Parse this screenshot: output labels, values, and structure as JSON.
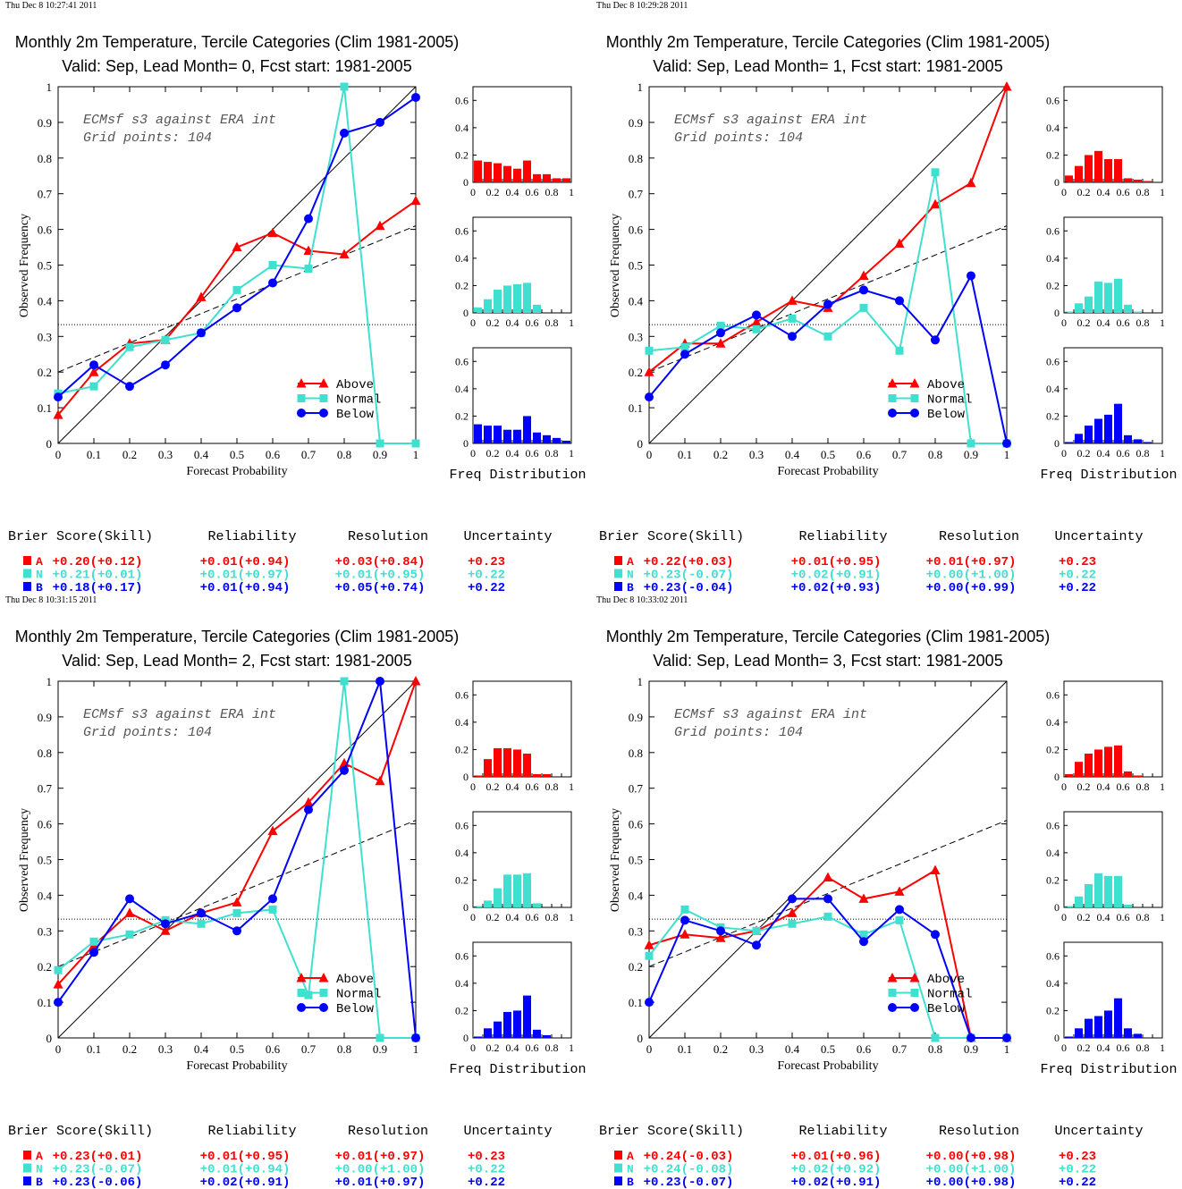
{
  "common": {
    "x_label": "Forecast Probability",
    "y_label": "Observed Frequency",
    "model_note": "ECMsf s3 against ERA int",
    "grid_note": "Grid points:  104",
    "hist_caption": "Freq Distribution",
    "legend": [
      "Above",
      "Normal",
      "Below"
    ],
    "score_headers": [
      "Brier Score(Skill)",
      "Reliability",
      "Resolution",
      "Uncertainty"
    ],
    "category_letters": [
      "A",
      "N",
      "B"
    ],
    "colors": {
      "above": "#ff0000",
      "normal": "#40e0d0",
      "below": "#0000ff",
      "axis": "#000000"
    },
    "markers": {
      "above": "triangle",
      "normal": "square",
      "below": "circle"
    },
    "x_ticks": [
      "0",
      "0.1",
      "0.2",
      "0.3",
      "0.4",
      "0.5",
      "0.6",
      "0.7",
      "0.8",
      "0.9",
      "1"
    ],
    "y_ticks": [
      "0",
      "0.1",
      "0.2",
      "0.3",
      "0.4",
      "0.5",
      "0.6",
      "0.7",
      "0.8",
      "0.9",
      "1"
    ],
    "hist_y_ticks": [
      "0",
      "0.2",
      "0.4",
      "0.6"
    ],
    "hist_x_ticks": [
      "0",
      "0.2",
      "0.4",
      "0.6",
      "0.8",
      "1"
    ]
  },
  "panels": [
    {
      "timestamp": "Thu Dec  8 10:27:41 2011",
      "title1": "Monthly 2m Temperature, Tercile Categories (Clim 1981-2005)",
      "title2": "Valid: Sep, Lead Month= 0, Fcst start: 1981-2005",
      "scores": [
        [
          "+0.20(+0.12)",
          "+0.01(+0.94)",
          "+0.03(+0.84)",
          "+0.23"
        ],
        [
          "+0.21(+0.01)",
          "+0.01(+0.97)",
          "+0.01(+0.95)",
          "+0.22"
        ],
        [
          "+0.18(+0.17)",
          "+0.01(+0.94)",
          "+0.05(+0.74)",
          "+0.22"
        ]
      ]
    },
    {
      "timestamp": "Thu Dec  8 10:29:28 2011",
      "title1": "Monthly 2m Temperature, Tercile Categories (Clim 1981-2005)",
      "title2": "Valid: Sep, Lead Month= 1, Fcst start: 1981-2005",
      "scores": [
        [
          "+0.22(+0.03)",
          "+0.01(+0.95)",
          "+0.01(+0.97)",
          "+0.23"
        ],
        [
          "+0.23(-0.07)",
          "+0.02(+0.91)",
          "+0.00(+1.00)",
          "+0.22"
        ],
        [
          "+0.23(-0.04)",
          "+0.02(+0.93)",
          "+0.00(+0.99)",
          "+0.22"
        ]
      ]
    },
    {
      "timestamp": "Thu Dec  8 10:31:15 2011",
      "title1": "Monthly 2m Temperature, Tercile Categories (Clim 1981-2005)",
      "title2": "Valid: Sep, Lead Month= 2, Fcst start: 1981-2005",
      "scores": [
        [
          "+0.23(+0.01)",
          "+0.01(+0.95)",
          "+0.01(+0.97)",
          "+0.23"
        ],
        [
          "+0.23(-0.07)",
          "+0.01(+0.94)",
          "+0.00(+1.00)",
          "+0.22"
        ],
        [
          "+0.23(-0.06)",
          "+0.02(+0.91)",
          "+0.01(+0.97)",
          "+0.22"
        ]
      ]
    },
    {
      "timestamp": "Thu Dec  8 10:33:02 2011",
      "title1": "Monthly 2m Temperature, Tercile Categories (Clim 1981-2005)",
      "title2": "Valid: Sep, Lead Month= 3, Fcst start: 1981-2005",
      "scores": [
        [
          "+0.24(-0.03)",
          "+0.01(+0.96)",
          "+0.00(+0.98)",
          "+0.23"
        ],
        [
          "+0.24(-0.08)",
          "+0.02(+0.92)",
          "+0.00(+1.00)",
          "+0.22"
        ],
        [
          "+0.23(-0.07)",
          "+0.02(+0.91)",
          "+0.00(+0.98)",
          "+0.22"
        ]
      ]
    }
  ],
  "chart_data": [
    {
      "type": "line",
      "x": [
        0,
        0.1,
        0.2,
        0.3,
        0.4,
        0.5,
        0.6,
        0.7,
        0.8,
        0.9,
        1
      ],
      "xlim": [
        0,
        1
      ],
      "ylim": [
        0,
        1
      ],
      "reference_lines": {
        "climatology": 0.333,
        "no_skill": [
          0.2,
          0.61
        ]
      },
      "series": [
        {
          "name": "Above",
          "values": [
            0.08,
            0.2,
            0.28,
            0.29,
            0.41,
            0.55,
            0.59,
            0.54,
            0.53,
            0.61,
            0.68
          ]
        },
        {
          "name": "Normal",
          "values": [
            0.14,
            0.16,
            0.27,
            0.29,
            0.31,
            0.43,
            0.5,
            0.49,
            1.0,
            0.0,
            0.0
          ]
        },
        {
          "name": "Below",
          "values": [
            0.13,
            0.22,
            0.16,
            0.22,
            0.31,
            0.38,
            0.45,
            0.63,
            0.87,
            0.9,
            0.97
          ]
        }
      ],
      "histograms": {
        "above": [
          0.16,
          0.15,
          0.14,
          0.12,
          0.1,
          0.16,
          0.06,
          0.06,
          0.03,
          0.03
        ],
        "normal": [
          0.04,
          0.1,
          0.17,
          0.2,
          0.21,
          0.22,
          0.06,
          0.0,
          0.0,
          0.0
        ],
        "below": [
          0.14,
          0.13,
          0.13,
          0.1,
          0.1,
          0.2,
          0.08,
          0.06,
          0.04,
          0.02
        ]
      }
    },
    {
      "type": "line",
      "x": [
        0,
        0.1,
        0.2,
        0.3,
        0.4,
        0.5,
        0.6,
        0.7,
        0.8,
        0.9,
        1
      ],
      "xlim": [
        0,
        1
      ],
      "ylim": [
        0,
        1
      ],
      "reference_lines": {
        "climatology": 0.333,
        "no_skill": [
          0.2,
          0.61
        ]
      },
      "series": [
        {
          "name": "Above",
          "values": [
            0.2,
            0.28,
            0.28,
            0.34,
            0.4,
            0.38,
            0.47,
            0.56,
            0.67,
            0.73,
            1.0
          ]
        },
        {
          "name": "Normal",
          "values": [
            0.26,
            0.27,
            0.33,
            0.32,
            0.35,
            0.3,
            0.38,
            0.26,
            0.76,
            0.0,
            0.0
          ]
        },
        {
          "name": "Below",
          "values": [
            0.13,
            0.25,
            0.31,
            0.36,
            0.3,
            0.39,
            0.43,
            0.4,
            0.29,
            0.47,
            0.0
          ]
        }
      ],
      "histograms": {
        "above": [
          0.05,
          0.12,
          0.2,
          0.23,
          0.17,
          0.17,
          0.03,
          0.02,
          0.01,
          0.0
        ],
        "normal": [
          0.01,
          0.07,
          0.12,
          0.23,
          0.22,
          0.25,
          0.06,
          0.01,
          0.0,
          0.0
        ],
        "below": [
          0.01,
          0.07,
          0.13,
          0.18,
          0.21,
          0.29,
          0.06,
          0.03,
          0.01,
          0.0
        ]
      }
    },
    {
      "type": "line",
      "x": [
        0,
        0.1,
        0.2,
        0.3,
        0.4,
        0.5,
        0.6,
        0.7,
        0.8,
        0.9,
        1
      ],
      "xlim": [
        0,
        1
      ],
      "ylim": [
        0,
        1
      ],
      "reference_lines": {
        "climatology": 0.333,
        "no_skill": [
          0.2,
          0.61
        ]
      },
      "series": [
        {
          "name": "Above",
          "values": [
            0.15,
            0.26,
            0.35,
            0.3,
            0.35,
            0.38,
            0.58,
            0.66,
            0.77,
            0.72,
            1.0
          ]
        },
        {
          "name": "Normal",
          "values": [
            0.19,
            0.27,
            0.29,
            0.33,
            0.32,
            0.35,
            0.36,
            0.12,
            1.0,
            0.0,
            0.0
          ]
        },
        {
          "name": "Below",
          "values": [
            0.1,
            0.24,
            0.39,
            0.32,
            0.35,
            0.3,
            0.39,
            0.64,
            0.75,
            1.0,
            0.0
          ]
        }
      ],
      "histograms": {
        "above": [
          0.01,
          0.13,
          0.21,
          0.21,
          0.2,
          0.17,
          0.02,
          0.02,
          0.0,
          0.0
        ],
        "normal": [
          0.01,
          0.05,
          0.14,
          0.24,
          0.24,
          0.25,
          0.03,
          0.0,
          0.0,
          0.0
        ],
        "below": [
          0.01,
          0.07,
          0.12,
          0.19,
          0.2,
          0.31,
          0.06,
          0.02,
          0.0,
          0.0
        ]
      }
    },
    {
      "type": "line",
      "x": [
        0,
        0.1,
        0.2,
        0.3,
        0.4,
        0.5,
        0.6,
        0.7,
        0.8,
        0.9,
        1
      ],
      "xlim": [
        0,
        1
      ],
      "ylim": [
        0,
        1
      ],
      "reference_lines": {
        "climatology": 0.333,
        "no_skill": [
          0.2,
          0.61
        ]
      },
      "series": [
        {
          "name": "Above",
          "values": [
            0.26,
            0.29,
            0.28,
            0.3,
            0.35,
            0.45,
            0.39,
            0.41,
            0.47,
            0.0,
            0.0
          ]
        },
        {
          "name": "Normal",
          "values": [
            0.23,
            0.36,
            0.31,
            0.3,
            0.32,
            0.34,
            0.29,
            0.33,
            0.0,
            0.0,
            0.0
          ]
        },
        {
          "name": "Below",
          "values": [
            0.1,
            0.33,
            0.3,
            0.26,
            0.39,
            0.39,
            0.27,
            0.36,
            0.29,
            0.0,
            0.0
          ]
        }
      ],
      "histograms": {
        "above": [
          0.02,
          0.11,
          0.17,
          0.2,
          0.22,
          0.23,
          0.04,
          0.01,
          0.0,
          0.0
        ],
        "normal": [
          0.01,
          0.08,
          0.17,
          0.25,
          0.23,
          0.23,
          0.02,
          0.0,
          0.0,
          0.0
        ],
        "below": [
          0.01,
          0.07,
          0.14,
          0.16,
          0.2,
          0.29,
          0.07,
          0.03,
          0.0,
          0.0
        ]
      }
    }
  ]
}
